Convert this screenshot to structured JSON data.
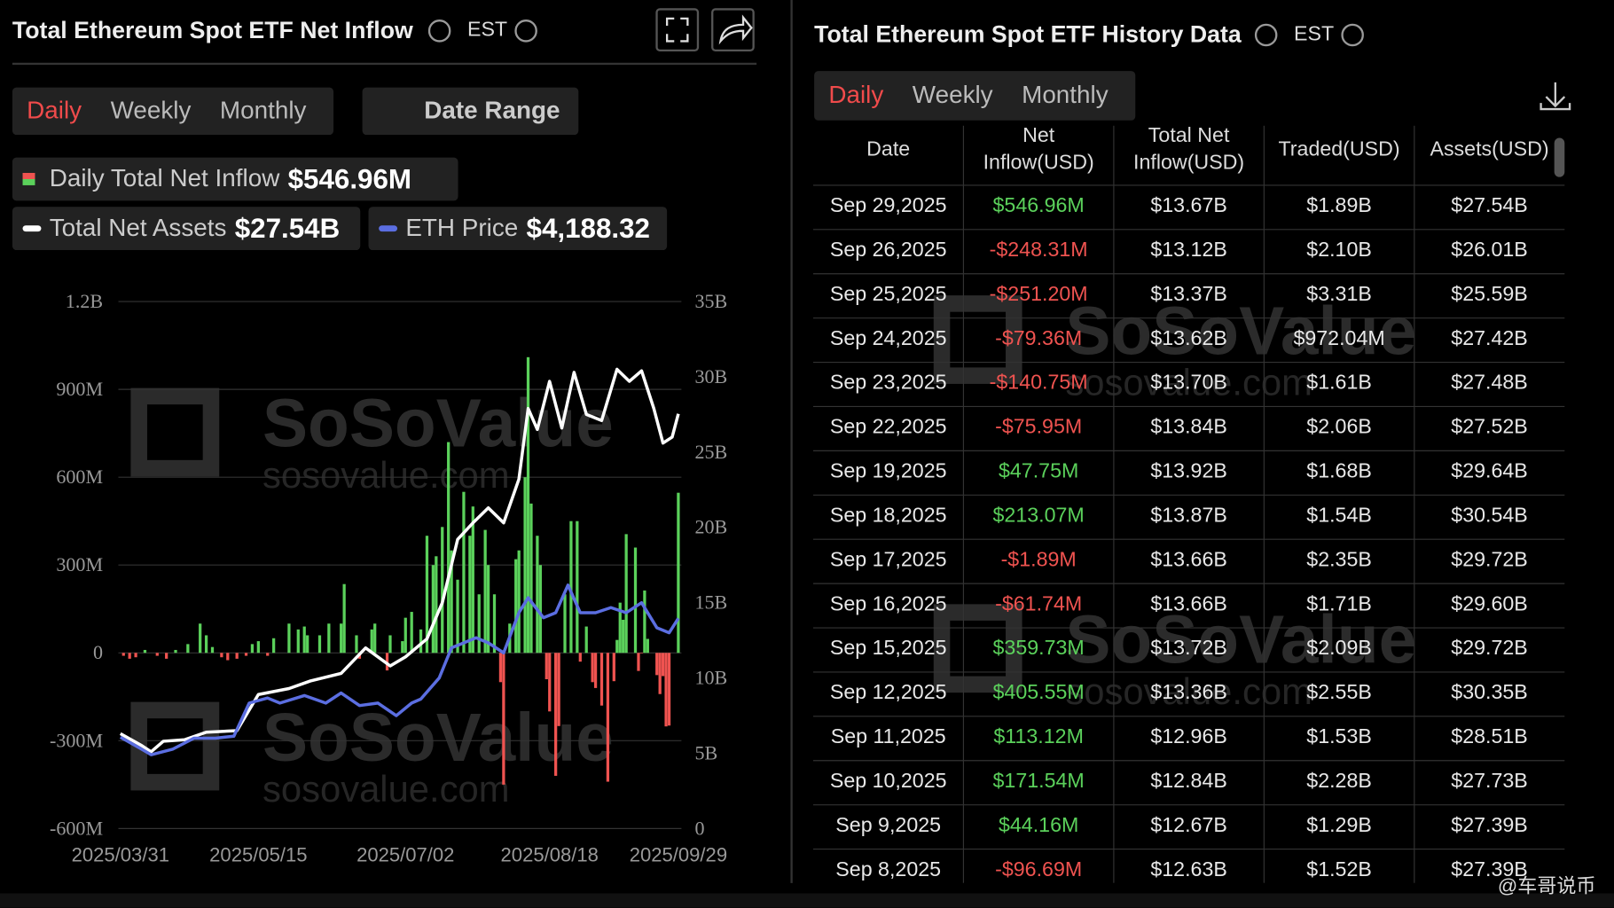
{
  "left": {
    "title": "Total Ethereum Spot ETF Net Inflow",
    "timezone": "EST",
    "tabs": [
      "Daily",
      "Weekly",
      "Monthly"
    ],
    "date_range": "Date Range"
  },
  "chart_data": {
    "type": "bar",
    "legend_values": [
      "$546.96M",
      "$27.54B",
      "$4,188.32"
    ],
    "xlim": [
      0,
      182
    ],
    "xticks": [
      {
        "value": 0,
        "label": "2025/03/31"
      },
      {
        "value": 45,
        "label": "2025/05/15"
      },
      {
        "value": 93,
        "label": "2025/07/02"
      },
      {
        "value": 140,
        "label": "2025/08/18"
      },
      {
        "value": 182,
        "label": "2025/09/29"
      }
    ],
    "ylim": [
      -600,
      1200
    ],
    "yticks": [
      {
        "value": 1200,
        "label": "1.2B"
      },
      {
        "value": 900,
        "label": "900M"
      },
      {
        "value": 600,
        "label": "600M"
      },
      {
        "value": 300,
        "label": "300M"
      },
      0,
      {
        "value": -300,
        "label": "-300M"
      },
      {
        "value": -600,
        "label": "-600M"
      }
    ],
    "y2lim": [
      0,
      35
    ],
    "y2ticks": [
      {
        "value": 35,
        "label": "35B"
      },
      {
        "value": 30,
        "label": "30B"
      },
      {
        "value": 25,
        "label": "25B"
      },
      {
        "value": 20,
        "label": "20B"
      },
      {
        "value": 15,
        "label": "15B"
      },
      {
        "value": 10,
        "label": "10B"
      },
      {
        "value": 5,
        "label": "5B"
      },
      0
    ],
    "y3lim": [
      0,
      10500
    ],
    "grid": true,
    "series": [
      {
        "name": "Daily Total Net Inflow",
        "type": "bar",
        "color": "#5bd15b",
        "negative_color": "#ef5350",
        "x": [
          1,
          3,
          5,
          8,
          12,
          15,
          18,
          22,
          26,
          28,
          30,
          33,
          35,
          38,
          41,
          43,
          45,
          48,
          50,
          55,
          58,
          60,
          61,
          65,
          68,
          72,
          73,
          77,
          78,
          82,
          83,
          87,
          88,
          92,
          93,
          95,
          98,
          100,
          102,
          103,
          105,
          107,
          108,
          110,
          112,
          114,
          115,
          117,
          119,
          120,
          122,
          124,
          125,
          127,
          129,
          130,
          132,
          133,
          134,
          136,
          137,
          139,
          140,
          142,
          143,
          145,
          147,
          149,
          150,
          152,
          154,
          155,
          157,
          159,
          161,
          162,
          163,
          164,
          165,
          168,
          169,
          170,
          171,
          172,
          175,
          176,
          177,
          178,
          179,
          182
        ],
        "values": [
          -10,
          -20,
          -15,
          10,
          -10,
          -20,
          10,
          30,
          100,
          60,
          20,
          -15,
          -25,
          -20,
          -10,
          30,
          40,
          -10,
          50,
          100,
          80,
          90,
          60,
          60,
          100,
          100,
          235,
          60,
          -20,
          80,
          100,
          -60,
          60,
          40,
          120,
          140,
          80,
          400,
          300,
          330,
          430,
          720,
          350,
          250,
          550,
          400,
          500,
          200,
          420,
          300,
          200,
          -100,
          -450,
          100,
          320,
          350,
          600,
          1010,
          510,
          400,
          300,
          -90,
          -200,
          -420,
          -250,
          200,
          450,
          450,
          -30,
          90,
          -100,
          -120,
          -180,
          -440,
          -96.69,
          44.16,
          171.54,
          113.12,
          405.55,
          359.73,
          -61.74,
          -1.89,
          213.07,
          47.75,
          -75.95,
          -140.75,
          -79.36,
          -251.2,
          -248.31,
          546.96
        ]
      },
      {
        "name": "Total Net Assets",
        "type": "line",
        "axis": "y2",
        "color": "#ffffff",
        "x": [
          0,
          7,
          10,
          14,
          21,
          28,
          38,
          45,
          55,
          62,
          72,
          80,
          88,
          93,
          100,
          105,
          110,
          115,
          120,
          125,
          130,
          133,
          136,
          140,
          144,
          148,
          152,
          157,
          162,
          166,
          170,
          174,
          177,
          180,
          182
        ],
        "values": [
          6.3,
          5.5,
          5.1,
          5.8,
          5.9,
          6.4,
          6.5,
          8.9,
          9.3,
          9.8,
          10.3,
          12.0,
          10.8,
          11.4,
          12.6,
          15.0,
          19.2,
          20.3,
          21.3,
          20.3,
          23.2,
          27.9,
          26.5,
          29.7,
          26.6,
          30.3,
          27.5,
          27.1,
          30.5,
          29.7,
          30.4,
          27.9,
          25.6,
          26.0,
          27.54
        ]
      },
      {
        "name": "ETH Price",
        "type": "line",
        "axis": "y3",
        "color": "#5b6ee1",
        "x": [
          0,
          7,
          10,
          17,
          24,
          31,
          37,
          42,
          48,
          52,
          60,
          67,
          72,
          78,
          84,
          90,
          95,
          98,
          104,
          108,
          112,
          116,
          120,
          125,
          130,
          133,
          138,
          142,
          146,
          150,
          155,
          160,
          165,
          170,
          175,
          179,
          182
        ],
        "values": [
          1820,
          1580,
          1470,
          1580,
          1800,
          1800,
          1840,
          2500,
          2600,
          2500,
          2650,
          2500,
          2700,
          2450,
          2500,
          2250,
          2500,
          2580,
          3000,
          3600,
          3700,
          3800,
          3700,
          3500,
          4300,
          4600,
          4200,
          4300,
          4850,
          4300,
          4300,
          4400,
          4300,
          4500,
          4000,
          3900,
          4188.32
        ]
      }
    ]
  },
  "right": {
    "title": "Total Ethereum Spot ETF History Data",
    "timezone": "EST",
    "tabs": [
      "Daily",
      "Weekly",
      "Monthly"
    ],
    "table": {
      "columns": [
        "Date",
        "Net Inflow(USD)",
        "Total Net Inflow(USD)",
        "Traded(USD)",
        "Assets(USD)"
      ],
      "rows": [
        [
          "Sep 29,2025",
          "$546.96M",
          "$13.67B",
          "$1.89B",
          "$27.54B"
        ],
        [
          "Sep 26,2025",
          "-$248.31M",
          "$13.12B",
          "$2.10B",
          "$26.01B"
        ],
        [
          "Sep 25,2025",
          "-$251.20M",
          "$13.37B",
          "$3.31B",
          "$25.59B"
        ],
        [
          "Sep 24,2025",
          "-$79.36M",
          "$13.62B",
          "$972.04M",
          "$27.42B"
        ],
        [
          "Sep 23,2025",
          "-$140.75M",
          "$13.70B",
          "$1.61B",
          "$27.48B"
        ],
        [
          "Sep 22,2025",
          "-$75.95M",
          "$13.84B",
          "$2.06B",
          "$27.52B"
        ],
        [
          "Sep 19,2025",
          "$47.75M",
          "$13.92B",
          "$1.68B",
          "$29.64B"
        ],
        [
          "Sep 18,2025",
          "$213.07M",
          "$13.87B",
          "$1.54B",
          "$30.54B"
        ],
        [
          "Sep 17,2025",
          "-$1.89M",
          "$13.66B",
          "$2.35B",
          "$29.72B"
        ],
        [
          "Sep 16,2025",
          "-$61.74M",
          "$13.66B",
          "$1.71B",
          "$29.60B"
        ],
        [
          "Sep 15,2025",
          "$359.73M",
          "$13.72B",
          "$2.09B",
          "$29.72B"
        ],
        [
          "Sep 12,2025",
          "$405.55M",
          "$13.36B",
          "$2.55B",
          "$30.35B"
        ],
        [
          "Sep 11,2025",
          "$113.12M",
          "$12.96B",
          "$1.53B",
          "$28.51B"
        ],
        [
          "Sep 10,2025",
          "$171.54M",
          "$12.84B",
          "$2.28B",
          "$27.73B"
        ],
        [
          "Sep 9,2025",
          "$44.16M",
          "$12.67B",
          "$1.29B",
          "$27.39B"
        ],
        [
          "Sep 8,2025",
          "-$96.69M",
          "$12.63B",
          "$1.52B",
          "$27.39B"
        ]
      ]
    }
  },
  "watermark": [
    "SoSoValue",
    "sosovalue.com"
  ],
  "credit": "@车哥说币"
}
